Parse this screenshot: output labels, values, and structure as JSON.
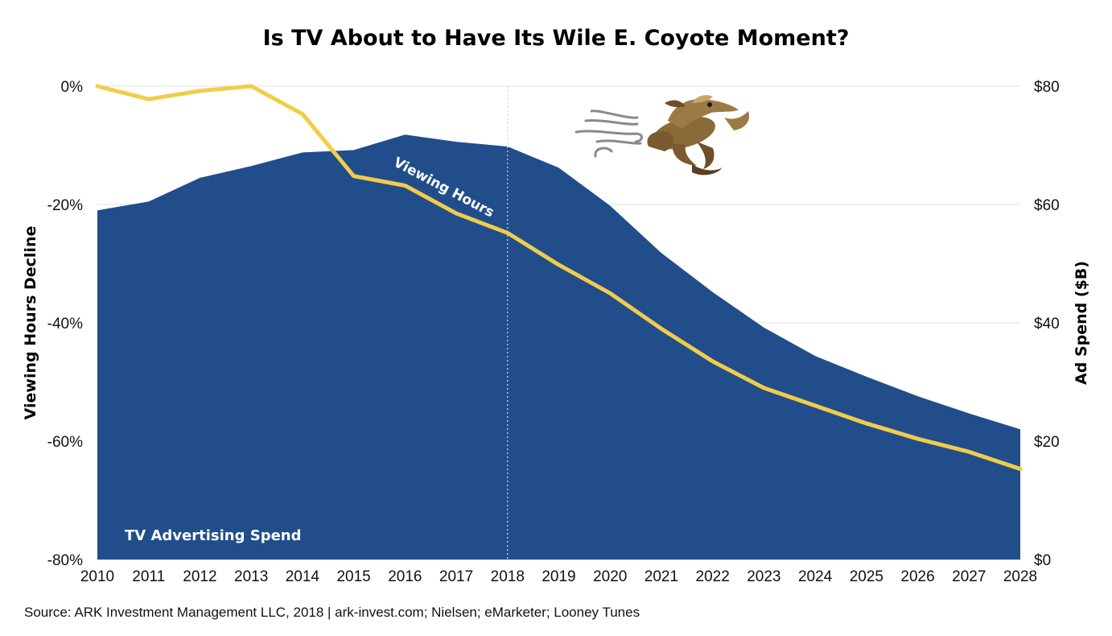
{
  "chart_data": {
    "type": "area",
    "title": "Is TV About to Have Its Wile E. Coyote Moment?",
    "ylabel_left": "Viewing Hours Decline",
    "ylabel_right": "Ad Spend ($B)",
    "x": [
      "2010",
      "2011",
      "2012",
      "2013",
      "2014",
      "2015",
      "2016",
      "2017",
      "2018",
      "2019",
      "2020",
      "2021",
      "2022",
      "2023",
      "2024",
      "2025",
      "2026",
      "2027",
      "2028"
    ],
    "left_axis": {
      "ticks": [
        "0%",
        "-20%",
        "-40%",
        "-60%",
        "-80%"
      ],
      "range": [
        -80,
        0
      ]
    },
    "right_axis": {
      "ticks": [
        "$80",
        "$60",
        "$40",
        "$20",
        "$0"
      ],
      "range": [
        0,
        80
      ]
    },
    "divider_year": "2018",
    "grid": true,
    "series": [
      {
        "name": "TV Advertising Spend",
        "axis": "right",
        "style": "area",
        "color": "#214e8a",
        "values": [
          59,
          60.5,
          64.5,
          66.5,
          68.8,
          69.2,
          71.8,
          70.6,
          69.8,
          66.2,
          59.8,
          51.8,
          45.2,
          39.2,
          34.4,
          30.9,
          27.6,
          24.7,
          22.0
        ]
      },
      {
        "name": "Viewing Hours",
        "axis": "left",
        "style": "line",
        "color": "#f2cc4a",
        "values": [
          0,
          -2.2,
          -0.8,
          0,
          -4.7,
          -15.2,
          -16.8,
          -21.5,
          -24.8,
          -30.2,
          -35.0,
          -41.0,
          -46.5,
          -51.0,
          -54.0,
          -57.0,
          -59.6,
          -61.8,
          -64.7
        ]
      }
    ]
  },
  "source": "Source: ARK Investment Management LLC, 2018 | ark-invest.com; Nielsen; eMarketer; Looney Tunes"
}
